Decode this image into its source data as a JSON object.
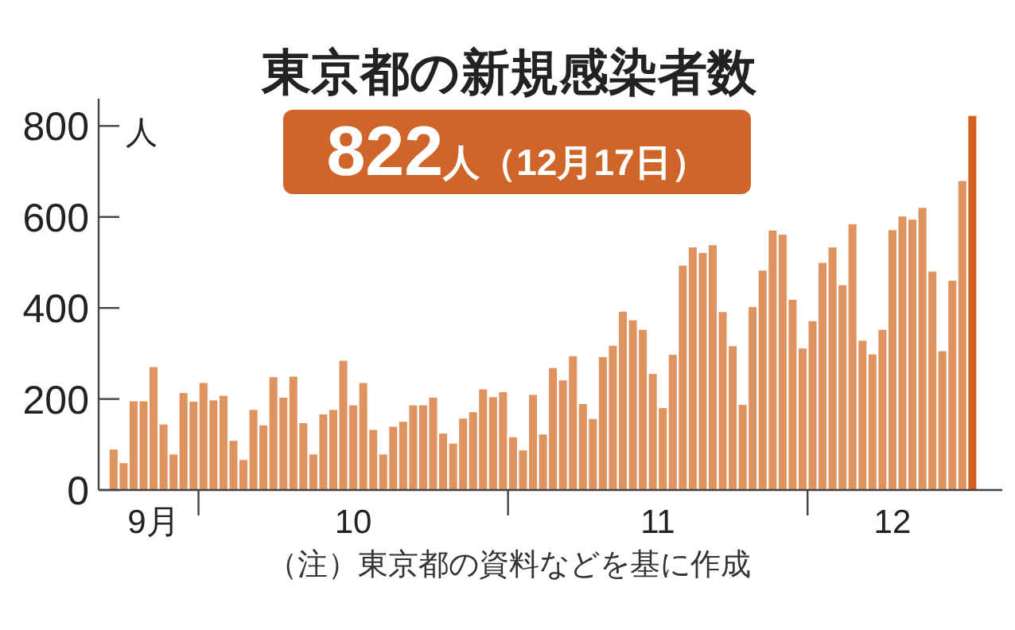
{
  "chart_data": {
    "type": "bar",
    "title": "東京都の新規感染者数",
    "ylabel": "人",
    "annotations": [
      "822人（12月17日）",
      "（注）東京都の資料などを基に作成"
    ],
    "x": [
      "--09-22",
      "--09-23",
      "--09-24",
      "--09-25",
      "--09-26",
      "--09-27",
      "--09-28",
      "--09-29",
      "--09-30",
      "--10-01",
      "--10-02",
      "--10-03",
      "--10-04",
      "--10-05",
      "--10-06",
      "--10-07",
      "--10-08",
      "--10-09",
      "--10-10",
      "--10-11",
      "--10-12",
      "--10-13",
      "--10-14",
      "--10-15",
      "--10-16",
      "--10-17",
      "--10-18",
      "--10-19",
      "--10-20",
      "--10-21",
      "--10-22",
      "--10-23",
      "--10-24",
      "--10-25",
      "--10-26",
      "--10-27",
      "--10-28",
      "--10-29",
      "--10-30",
      "--10-31",
      "--11-01",
      "--11-02",
      "--11-03",
      "--11-04",
      "--11-05",
      "--11-06",
      "--11-07",
      "--11-08",
      "--11-09",
      "--11-10",
      "--11-11",
      "--11-12",
      "--11-13",
      "--11-14",
      "--11-15",
      "--11-16",
      "--11-17",
      "--11-18",
      "--11-19",
      "--11-20",
      "--11-21",
      "--11-22",
      "--11-23",
      "--11-24",
      "--11-25",
      "--11-26",
      "--11-27",
      "--11-28",
      "--11-29",
      "--11-30",
      "--12-01",
      "--12-02",
      "--12-03",
      "--12-04",
      "--12-05",
      "--12-06",
      "--12-07",
      "--12-08",
      "--12-09",
      "--12-10",
      "--12-11",
      "--12-12",
      "--12-13",
      "--12-14",
      "--12-15",
      "--12-16",
      "--12-17"
    ],
    "values": [
      89,
      59,
      195,
      195,
      270,
      144,
      78,
      213,
      194,
      235,
      197,
      207,
      108,
      66,
      176,
      142,
      248,
      203,
      249,
      147,
      78,
      166,
      176,
      284,
      186,
      235,
      132,
      78,
      139,
      150,
      186,
      186,
      203,
      124,
      102,
      157,
      171,
      221,
      204,
      215,
      116,
      87,
      209,
      122,
      268,
      241,
      294,
      189,
      156,
      292,
      317,
      392,
      373,
      352,
      255,
      180,
      297,
      493,
      533,
      521,
      538,
      391,
      316,
      187,
      402,
      482,
      570,
      561,
      418,
      311,
      371,
      499,
      533,
      450,
      584,
      328,
      298,
      352,
      571,
      601,
      594,
      620,
      480,
      305,
      460,
      679,
      822
    ],
    "colors": [
      "#df935f",
      "#df935f",
      "#df935f",
      "#df935f",
      "#df935f",
      "#df935f",
      "#df935f",
      "#df935f",
      "#df935f",
      "#df935f",
      "#df935f",
      "#df935f",
      "#df935f",
      "#df935f",
      "#df935f",
      "#df935f",
      "#df935f",
      "#df935f",
      "#df935f",
      "#df935f",
      "#df935f",
      "#df935f",
      "#df935f",
      "#df935f",
      "#df935f",
      "#df935f",
      "#df935f",
      "#df935f",
      "#df935f",
      "#df935f",
      "#df935f",
      "#df935f",
      "#df935f",
      "#df935f",
      "#df935f",
      "#df935f",
      "#df935f",
      "#df935f",
      "#df935f",
      "#df935f",
      "#df935f",
      "#df935f",
      "#df935f",
      "#df935f",
      "#df935f",
      "#df935f",
      "#df935f",
      "#df935f",
      "#df935f",
      "#df935f",
      "#df935f",
      "#df935f",
      "#df935f",
      "#df935f",
      "#df935f",
      "#df935f",
      "#df935f",
      "#df935f",
      "#df935f",
      "#df935f",
      "#df935f",
      "#df935f",
      "#df935f",
      "#df935f",
      "#df935f",
      "#df935f",
      "#df935f",
      "#df935f",
      "#df935f",
      "#df935f",
      "#df935f",
      "#df935f",
      "#df935f",
      "#df935f",
      "#df935f",
      "#df935f",
      "#df935f",
      "#df935f",
      "#df935f",
      "#df935f",
      "#df935f",
      "#df935f",
      "#df935f",
      "#df935f",
      "#df935f",
      "#df935f",
      "#d4601f"
    ],
    "xlim": [
      "--09-20T12:00",
      "--12-20"
    ],
    "xticks": [
      {
        "value": "--09-26",
        "label": "9月"
      },
      {
        "value": "--09-30T12:00",
        "label": null
      },
      {
        "value": "--10-16",
        "label": "10"
      },
      {
        "value": "--10-31T12:00",
        "label": null
      },
      {
        "value": "--11-15T12:00",
        "label": "11"
      },
      {
        "value": "--11-30T12:00",
        "label": null
      },
      {
        "value": "--12-09",
        "label": "12"
      }
    ],
    "ylim": [
      0,
      860
    ],
    "yticks": [
      0,
      200,
      400,
      600,
      800
    ]
  }
}
